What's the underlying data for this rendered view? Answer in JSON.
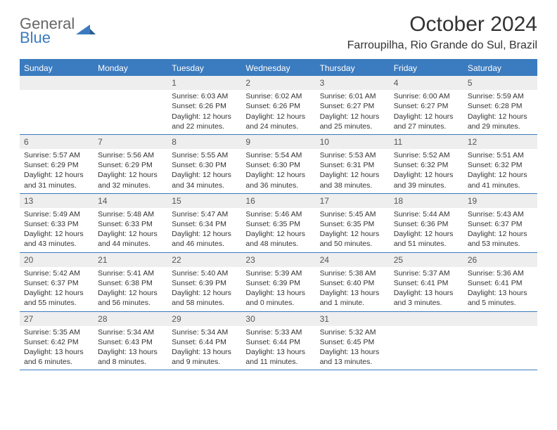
{
  "brand": {
    "line1": "General",
    "line2": "Blue",
    "logo_color": "#3b7bbf"
  },
  "title": "October 2024",
  "location": "Farroupilha, Rio Grande do Sul, Brazil",
  "colors": {
    "header_bg": "#3b7bbf",
    "daynum_bg": "#eeeeee",
    "text": "#333333"
  },
  "weekdays": [
    "Sunday",
    "Monday",
    "Tuesday",
    "Wednesday",
    "Thursday",
    "Friday",
    "Saturday"
  ],
  "weeks": [
    [
      null,
      null,
      {
        "n": "1",
        "sr": "Sunrise: 6:03 AM",
        "ss": "Sunset: 6:26 PM",
        "dl": "Daylight: 12 hours and 22 minutes."
      },
      {
        "n": "2",
        "sr": "Sunrise: 6:02 AM",
        "ss": "Sunset: 6:26 PM",
        "dl": "Daylight: 12 hours and 24 minutes."
      },
      {
        "n": "3",
        "sr": "Sunrise: 6:01 AM",
        "ss": "Sunset: 6:27 PM",
        "dl": "Daylight: 12 hours and 25 minutes."
      },
      {
        "n": "4",
        "sr": "Sunrise: 6:00 AM",
        "ss": "Sunset: 6:27 PM",
        "dl": "Daylight: 12 hours and 27 minutes."
      },
      {
        "n": "5",
        "sr": "Sunrise: 5:59 AM",
        "ss": "Sunset: 6:28 PM",
        "dl": "Daylight: 12 hours and 29 minutes."
      }
    ],
    [
      {
        "n": "6",
        "sr": "Sunrise: 5:57 AM",
        "ss": "Sunset: 6:29 PM",
        "dl": "Daylight: 12 hours and 31 minutes."
      },
      {
        "n": "7",
        "sr": "Sunrise: 5:56 AM",
        "ss": "Sunset: 6:29 PM",
        "dl": "Daylight: 12 hours and 32 minutes."
      },
      {
        "n": "8",
        "sr": "Sunrise: 5:55 AM",
        "ss": "Sunset: 6:30 PM",
        "dl": "Daylight: 12 hours and 34 minutes."
      },
      {
        "n": "9",
        "sr": "Sunrise: 5:54 AM",
        "ss": "Sunset: 6:30 PM",
        "dl": "Daylight: 12 hours and 36 minutes."
      },
      {
        "n": "10",
        "sr": "Sunrise: 5:53 AM",
        "ss": "Sunset: 6:31 PM",
        "dl": "Daylight: 12 hours and 38 minutes."
      },
      {
        "n": "11",
        "sr": "Sunrise: 5:52 AM",
        "ss": "Sunset: 6:32 PM",
        "dl": "Daylight: 12 hours and 39 minutes."
      },
      {
        "n": "12",
        "sr": "Sunrise: 5:51 AM",
        "ss": "Sunset: 6:32 PM",
        "dl": "Daylight: 12 hours and 41 minutes."
      }
    ],
    [
      {
        "n": "13",
        "sr": "Sunrise: 5:49 AM",
        "ss": "Sunset: 6:33 PM",
        "dl": "Daylight: 12 hours and 43 minutes."
      },
      {
        "n": "14",
        "sr": "Sunrise: 5:48 AM",
        "ss": "Sunset: 6:33 PM",
        "dl": "Daylight: 12 hours and 44 minutes."
      },
      {
        "n": "15",
        "sr": "Sunrise: 5:47 AM",
        "ss": "Sunset: 6:34 PM",
        "dl": "Daylight: 12 hours and 46 minutes."
      },
      {
        "n": "16",
        "sr": "Sunrise: 5:46 AM",
        "ss": "Sunset: 6:35 PM",
        "dl": "Daylight: 12 hours and 48 minutes."
      },
      {
        "n": "17",
        "sr": "Sunrise: 5:45 AM",
        "ss": "Sunset: 6:35 PM",
        "dl": "Daylight: 12 hours and 50 minutes."
      },
      {
        "n": "18",
        "sr": "Sunrise: 5:44 AM",
        "ss": "Sunset: 6:36 PM",
        "dl": "Daylight: 12 hours and 51 minutes."
      },
      {
        "n": "19",
        "sr": "Sunrise: 5:43 AM",
        "ss": "Sunset: 6:37 PM",
        "dl": "Daylight: 12 hours and 53 minutes."
      }
    ],
    [
      {
        "n": "20",
        "sr": "Sunrise: 5:42 AM",
        "ss": "Sunset: 6:37 PM",
        "dl": "Daylight: 12 hours and 55 minutes."
      },
      {
        "n": "21",
        "sr": "Sunrise: 5:41 AM",
        "ss": "Sunset: 6:38 PM",
        "dl": "Daylight: 12 hours and 56 minutes."
      },
      {
        "n": "22",
        "sr": "Sunrise: 5:40 AM",
        "ss": "Sunset: 6:39 PM",
        "dl": "Daylight: 12 hours and 58 minutes."
      },
      {
        "n": "23",
        "sr": "Sunrise: 5:39 AM",
        "ss": "Sunset: 6:39 PM",
        "dl": "Daylight: 13 hours and 0 minutes."
      },
      {
        "n": "24",
        "sr": "Sunrise: 5:38 AM",
        "ss": "Sunset: 6:40 PM",
        "dl": "Daylight: 13 hours and 1 minute."
      },
      {
        "n": "25",
        "sr": "Sunrise: 5:37 AM",
        "ss": "Sunset: 6:41 PM",
        "dl": "Daylight: 13 hours and 3 minutes."
      },
      {
        "n": "26",
        "sr": "Sunrise: 5:36 AM",
        "ss": "Sunset: 6:41 PM",
        "dl": "Daylight: 13 hours and 5 minutes."
      }
    ],
    [
      {
        "n": "27",
        "sr": "Sunrise: 5:35 AM",
        "ss": "Sunset: 6:42 PM",
        "dl": "Daylight: 13 hours and 6 minutes."
      },
      {
        "n": "28",
        "sr": "Sunrise: 5:34 AM",
        "ss": "Sunset: 6:43 PM",
        "dl": "Daylight: 13 hours and 8 minutes."
      },
      {
        "n": "29",
        "sr": "Sunrise: 5:34 AM",
        "ss": "Sunset: 6:44 PM",
        "dl": "Daylight: 13 hours and 9 minutes."
      },
      {
        "n": "30",
        "sr": "Sunrise: 5:33 AM",
        "ss": "Sunset: 6:44 PM",
        "dl": "Daylight: 13 hours and 11 minutes."
      },
      {
        "n": "31",
        "sr": "Sunrise: 5:32 AM",
        "ss": "Sunset: 6:45 PM",
        "dl": "Daylight: 13 hours and 13 minutes."
      },
      null,
      null
    ]
  ]
}
